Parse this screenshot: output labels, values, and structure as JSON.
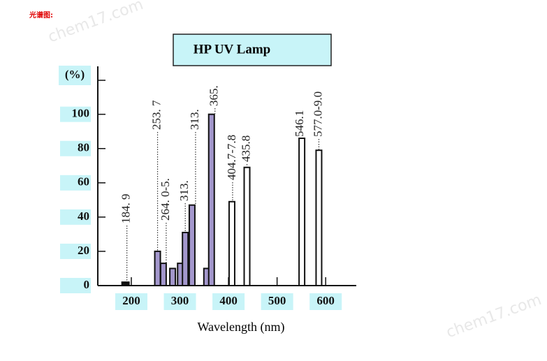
{
  "header": "光谱图:",
  "watermarks": [
    "chem17.com",
    "chem17.com"
  ],
  "chart_data": {
    "type": "bar",
    "title": "HP UV Lamp",
    "y_label": "(%)",
    "x_label": "Wavelength (nm)",
    "x": [
      188,
      254,
      266,
      285,
      301,
      311,
      325,
      355,
      365,
      407,
      438,
      551,
      586
    ],
    "values": [
      2,
      20,
      13,
      10,
      13,
      31,
      47,
      10,
      100,
      49,
      69,
      86,
      79
    ],
    "colors": [
      "#111111",
      "#a397cc",
      "#a397cc",
      "#a397cc",
      "#a397cc",
      "#a397cc",
      "#a397cc",
      "#a397cc",
      "#a397cc",
      "#ffffff",
      "#ffffff",
      "#ffffff",
      "#ffffff"
    ],
    "annotations": [
      "184. 9",
      "253. 7",
      "264. 0-5.",
      "313.",
      "313.",
      "365.",
      "404.7-7.8",
      "435.8",
      "546.1",
      "577.0-9.0"
    ],
    "xlim": [
      131,
      663
    ],
    "xticks": [
      200,
      300,
      400,
      500,
      600
    ],
    "ylim": [
      0,
      128
    ],
    "yticks": [
      0,
      20,
      40,
      60,
      80,
      100
    ]
  }
}
